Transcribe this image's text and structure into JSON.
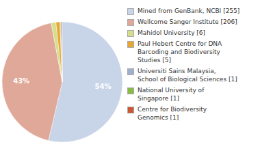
{
  "chart_data": {
    "type": "pie",
    "categories": [
      "Mined from GenBank, NCBI [255]",
      "Wellcome Sanger Institute [206]",
      "Mahidol University [6]",
      "Paul Hebert Centre for DNA\nBarcoding and Biodiversity\nStudies [5]",
      "Universiti Sains Malaysia,\nSchool of Biological Sciences [1]",
      "National University of\nSingapore [1]",
      "Centre for Biodiversity\nGenomics [1]"
    ],
    "values": [
      53.68,
      43.37,
      1.26,
      1.05,
      0.21,
      0.21,
      0.21
    ],
    "value_labels": [
      "54%",
      "43%",
      null,
      null,
      null,
      null,
      null
    ],
    "colors": [
      "#c8d4e8",
      "#e0a898",
      "#d4de8c",
      "#e8a830",
      "#a0aed0",
      "#88bb44",
      "#cc5533"
    ],
    "data_labels": true,
    "legend": "right"
  }
}
